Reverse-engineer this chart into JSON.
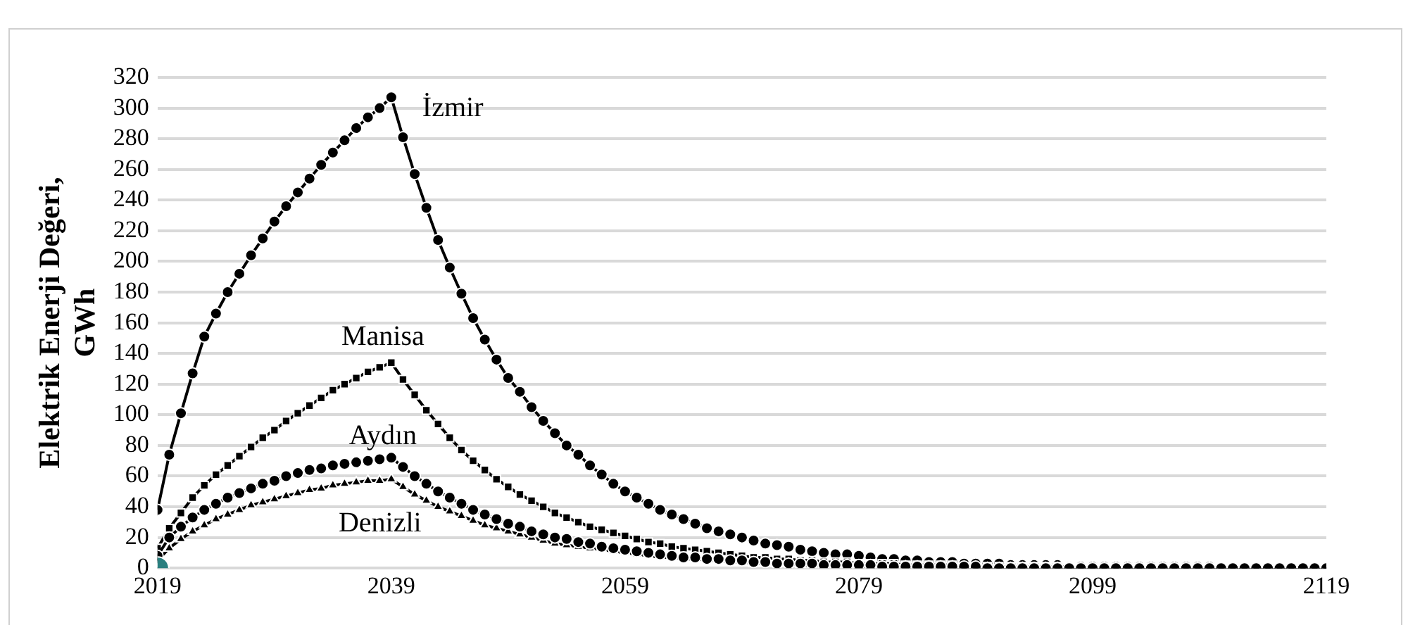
{
  "chart_data": {
    "type": "line",
    "ylabel": "Elektrik Enerji Değeri, GWh",
    "x": [
      2019,
      2020,
      2021,
      2022,
      2023,
      2024,
      2025,
      2026,
      2027,
      2028,
      2029,
      2030,
      2031,
      2032,
      2033,
      2034,
      2035,
      2036,
      2037,
      2038,
      2039,
      2040,
      2041,
      2042,
      2043,
      2044,
      2045,
      2046,
      2047,
      2048,
      2049,
      2050,
      2051,
      2052,
      2053,
      2054,
      2055,
      2056,
      2057,
      2058,
      2059,
      2060,
      2061,
      2062,
      2063,
      2064,
      2065,
      2066,
      2067,
      2068,
      2069,
      2070,
      2071,
      2072,
      2073,
      2074,
      2075,
      2076,
      2077,
      2078,
      2079,
      2080,
      2081,
      2082,
      2083,
      2084,
      2085,
      2086,
      2087,
      2088,
      2089,
      2090,
      2091,
      2092,
      2093,
      2094,
      2095,
      2096,
      2097,
      2098,
      2099,
      2100,
      2101,
      2102,
      2103,
      2104,
      2105,
      2106,
      2107,
      2108,
      2109,
      2110,
      2111,
      2112,
      2113,
      2114,
      2115,
      2116,
      2117,
      2118,
      2119
    ],
    "series": [
      {
        "name": "İzmir",
        "color": "#000000",
        "marker": "circle",
        "values": [
          38,
          74,
          101,
          127,
          151,
          166,
          180,
          192,
          204,
          215,
          226,
          236,
          245,
          254,
          263,
          271,
          279,
          287,
          294,
          300,
          307,
          281,
          257,
          235,
          214,
          196,
          179,
          163,
          149,
          136,
          124,
          115,
          105,
          96,
          88,
          80,
          74,
          67,
          61,
          55,
          50,
          46,
          42,
          38,
          35,
          32,
          29,
          26,
          24,
          22,
          20,
          18,
          16,
          15,
          14,
          12,
          11,
          10,
          9,
          9,
          8,
          7,
          6,
          6,
          5,
          5,
          4,
          4,
          4,
          3,
          3,
          3,
          3,
          2,
          2,
          2,
          2,
          2,
          1,
          1,
          1,
          1,
          1,
          1,
          1,
          1,
          1,
          1,
          1,
          1,
          1,
          0,
          0,
          0,
          0,
          0,
          0,
          0,
          0,
          0,
          0
        ]
      },
      {
        "name": "Manisa",
        "color": "#000000",
        "marker": "square",
        "values": [
          13,
          26,
          36,
          46,
          54,
          61,
          67,
          73,
          79,
          85,
          90,
          96,
          101,
          106,
          111,
          116,
          120,
          124,
          128,
          131,
          134,
          123,
          113,
          103,
          94,
          85,
          77,
          70,
          64,
          58,
          53,
          48,
          44,
          40,
          36,
          33,
          30,
          27,
          25,
          23,
          21,
          19,
          17,
          16,
          14,
          13,
          12,
          11,
          10,
          9,
          8,
          7,
          7,
          6,
          6,
          5,
          5,
          4,
          4,
          4,
          3,
          3,
          3,
          3,
          2,
          2,
          2,
          2,
          2,
          1,
          1,
          1,
          1,
          1,
          1,
          1,
          1,
          1,
          1,
          0,
          0,
          0,
          0,
          0,
          0,
          0,
          0,
          0,
          0,
          0,
          0,
          0,
          0,
          0,
          0,
          0,
          0,
          0,
          0,
          0,
          0
        ]
      },
      {
        "name": "Aydın",
        "color": "#000000",
        "marker": "circle",
        "values": [
          8,
          20,
          27,
          33,
          38,
          42,
          46,
          49,
          52,
          55,
          57,
          60,
          62,
          64,
          65,
          67,
          68,
          69,
          70,
          71,
          72,
          66,
          60,
          55,
          50,
          46,
          42,
          38,
          35,
          32,
          29,
          27,
          24,
          22,
          20,
          19,
          17,
          16,
          14,
          13,
          12,
          11,
          10,
          9,
          8,
          7,
          7,
          6,
          6,
          5,
          5,
          4,
          4,
          3,
          3,
          3,
          3,
          2,
          2,
          2,
          2,
          2,
          1,
          1,
          1,
          1,
          1,
          1,
          1,
          1,
          1,
          0,
          0,
          0,
          0,
          0,
          0,
          0,
          0,
          0,
          0,
          0,
          0,
          0,
          0,
          0,
          0,
          0,
          0,
          0,
          0,
          0,
          0,
          0,
          0,
          0,
          0,
          0,
          0,
          0,
          0
        ]
      },
      {
        "name": "Denizli",
        "color": "#000000",
        "marker": "triangle",
        "values": [
          5,
          13,
          19,
          24,
          28,
          32,
          35,
          38,
          41,
          43,
          45,
          47,
          49,
          51,
          52,
          54,
          55,
          56,
          57,
          57,
          58,
          53,
          48,
          44,
          40,
          37,
          34,
          31,
          28,
          26,
          24,
          22,
          20,
          18,
          16,
          15,
          14,
          13,
          12,
          11,
          10,
          9,
          8,
          7,
          7,
          6,
          6,
          5,
          5,
          4,
          4,
          3,
          3,
          3,
          3,
          2,
          2,
          2,
          2,
          2,
          1,
          1,
          1,
          1,
          1,
          1,
          1,
          1,
          1,
          0,
          0,
          0,
          0,
          0,
          0,
          0,
          0,
          0,
          0,
          0,
          0,
          0,
          0,
          0,
          0,
          0,
          0,
          0,
          0,
          0,
          0,
          0,
          0,
          0,
          0,
          0,
          0,
          0,
          0,
          0,
          0
        ]
      },
      {
        "color": "#2a7f7f",
        "marker": "circle",
        "x": [
          2019
        ],
        "values": [
          0
        ]
      }
    ],
    "xlim": [
      2019,
      2119
    ],
    "xticks": [
      2019,
      2039,
      2059,
      2079,
      2099,
      2119
    ],
    "ylim": [
      0,
      320
    ],
    "yticks": [
      0,
      20,
      40,
      60,
      80,
      100,
      120,
      140,
      160,
      180,
      200,
      220,
      240,
      260,
      280,
      300,
      320
    ],
    "grid": "y",
    "legend": false
  }
}
